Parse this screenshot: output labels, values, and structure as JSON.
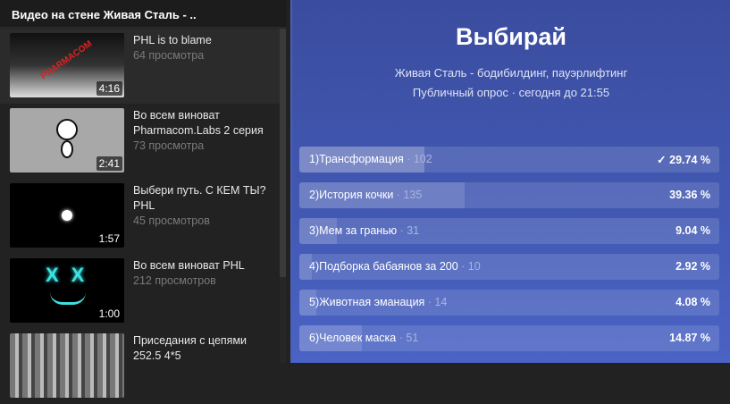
{
  "sidebar": {
    "title": "Видео на стене Живая Сталь - ..",
    "videos": [
      {
        "title": "PHL is to blame",
        "views": "64 просмотра",
        "duration": "4:16"
      },
      {
        "title": "Во всем виноват Pharmacom.Labs 2 серия",
        "views": "73 просмотра",
        "duration": "2:41"
      },
      {
        "title": "Выбери путь. С КЕМ ТЫ? PHL",
        "views": "45 просмотров",
        "duration": "1:57"
      },
      {
        "title": "Во всем виноват PHL",
        "views": "212 просмотров",
        "duration": "1:00"
      },
      {
        "title": "Приседания с цепями 252.5 4*5",
        "views": "",
        "duration": ""
      }
    ]
  },
  "poll": {
    "title": "Выбирай",
    "community": "Живая Сталь - бодибилдинг, пауэрлифтинг",
    "meta": "Публичный опрос · сегодня до 21:55",
    "options": [
      {
        "label": "1)Трансформация",
        "count": " · 102",
        "percent": "29.74 %",
        "value": 29.74,
        "selected": true
      },
      {
        "label": "2)История кочки",
        "count": " · 135",
        "percent": "39.36 %",
        "value": 39.36,
        "selected": false
      },
      {
        "label": "3)Мем за гранью",
        "count": " · 31",
        "percent": "9.04 %",
        "value": 9.04,
        "selected": false
      },
      {
        "label": "4)Подборка бабаянов за 200",
        "count": " · 10",
        "percent": "2.92 %",
        "value": 2.92,
        "selected": false
      },
      {
        "label": "5)Животная эманация",
        "count": " · 14",
        "percent": "4.08 %",
        "value": 4.08,
        "selected": false
      },
      {
        "label": "6)Человек маска",
        "count": " · 51",
        "percent": "14.87 %",
        "value": 14.87,
        "selected": false
      }
    ]
  },
  "colors": {
    "accent": "#4259b4",
    "panel": "#222222"
  }
}
